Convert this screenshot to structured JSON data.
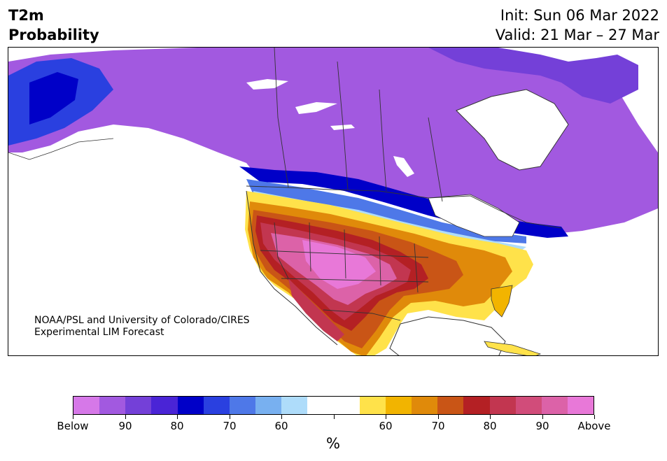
{
  "header": {
    "variable": "T2m",
    "quantity": "Probability",
    "init": "Init: Sun 06 Mar 2022",
    "valid": "Valid: 21 Mar – 27 Mar"
  },
  "credit": {
    "line1": "NOAA/PSL and University of Colorado/CIRES",
    "line2": "Experimental LIM Forecast"
  },
  "colorbar": {
    "colors": [
      "#d678e8",
      "#a259e0",
      "#7440d8",
      "#4a24d6",
      "#0000c8",
      "#2a40e0",
      "#4e78e8",
      "#78b0f0",
      "#aedcfa",
      "#ffffff",
      "#ffffff",
      "#ffe24a",
      "#f2b400",
      "#e08a0a",
      "#c95516",
      "#b42024",
      "#c23650",
      "#d14c7a",
      "#dc62a8",
      "#e878d8"
    ],
    "tick_labels": [
      "Below",
      "90",
      "80",
      "70",
      "60",
      "",
      "60",
      "70",
      "80",
      "90",
      "Above"
    ],
    "unit": "%"
  },
  "legend_colors": {
    "land_outline": "#333333",
    "strong_below": "#0000c8",
    "moderate_below": "#a259e0",
    "strong_above": "#dc62a8",
    "moderate_above": "#e08a0a"
  }
}
